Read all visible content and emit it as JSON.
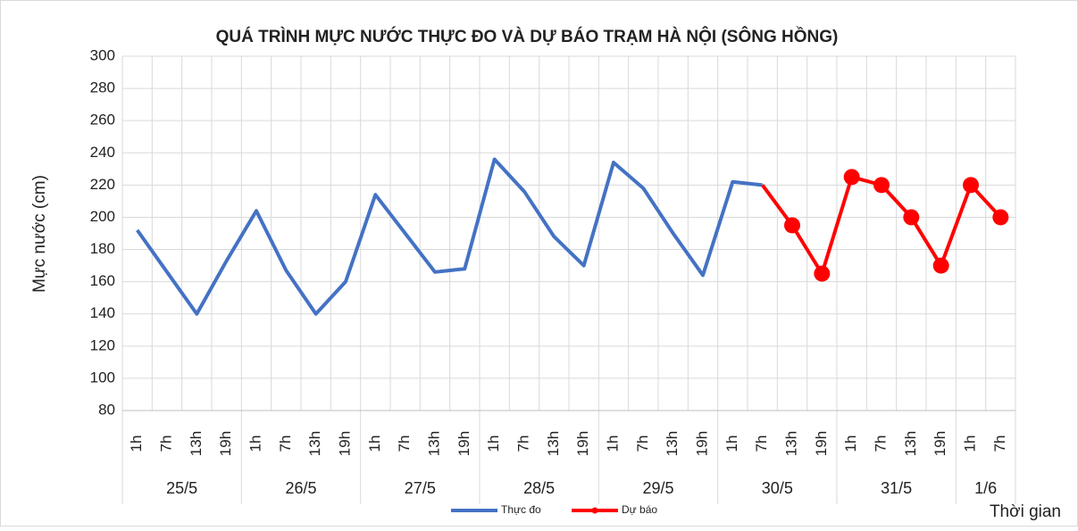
{
  "chart_data": {
    "type": "line",
    "title": "QUÁ TRÌNH MỰC NƯỚC THỰC ĐO VÀ DỰ BÁO TRẠM HÀ NỘI (SÔNG HỒNG)",
    "ylabel": "Mực nước (cm)",
    "xlabel": "Thời gian",
    "categories": [
      "1h",
      "7h",
      "13h",
      "19h",
      "1h",
      "7h",
      "13h",
      "19h",
      "1h",
      "7h",
      "13h",
      "19h",
      "1h",
      "7h",
      "13h",
      "19h",
      "1h",
      "7h",
      "13h",
      "19h",
      "1h",
      "7h",
      "13h",
      "19h",
      "1h",
      "7h",
      "13h",
      "19h",
      "1h",
      "7h"
    ],
    "category_groups": [
      "25/5",
      "26/5",
      "27/5",
      "28/5",
      "29/5",
      "30/5",
      "31/5",
      "1/6"
    ],
    "series": [
      {
        "name": "Thực đo",
        "color": "#4472c4",
        "markers": false,
        "values": [
          192,
          166,
          140,
          173,
          204,
          167,
          140,
          160,
          214,
          190,
          166,
          168,
          236,
          216,
          188,
          170,
          234,
          218,
          190,
          164,
          222,
          220,
          null,
          null,
          null,
          null,
          null,
          null,
          null,
          null
        ]
      },
      {
        "name": "Dự báo",
        "color": "#ff0000",
        "markers": true,
        "values": [
          null,
          null,
          null,
          null,
          null,
          null,
          null,
          null,
          null,
          null,
          null,
          null,
          null,
          null,
          null,
          null,
          null,
          null,
          null,
          null,
          null,
          220,
          195,
          165,
          225,
          220,
          200,
          170,
          220,
          200
        ]
      }
    ],
    "ylim": [
      80,
      300
    ],
    "yticks": [
      80,
      100,
      120,
      140,
      160,
      180,
      200,
      220,
      240,
      260,
      280,
      300
    ],
    "grid": true,
    "legend": "bottom"
  }
}
